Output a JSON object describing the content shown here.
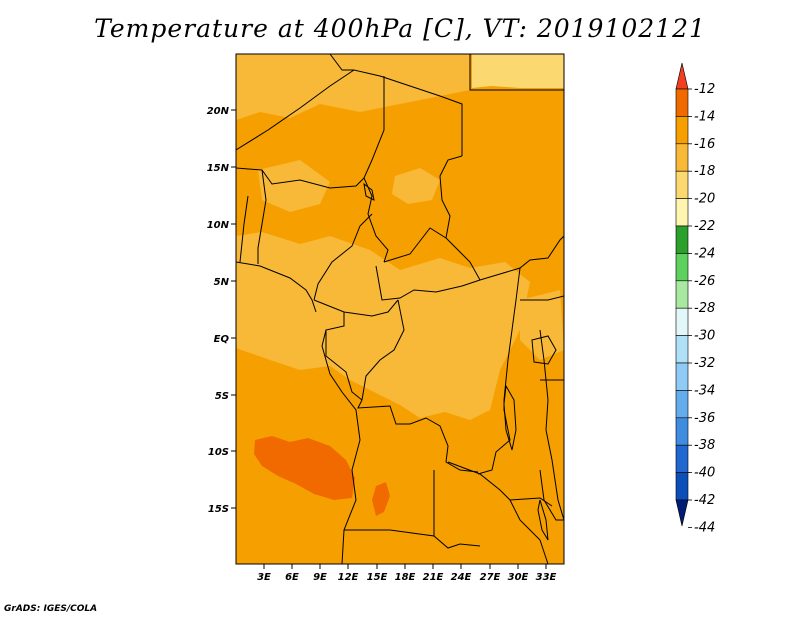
{
  "title": "Temperature at 400hPa [C], VT: 2019102121",
  "credit": "GrADS: IGES/COLA",
  "map": {
    "lat_labels": [
      "20N",
      "15N",
      "10N",
      "5N",
      "EQ",
      "5S",
      "10S",
      "15S"
    ],
    "lon_labels": [
      "3E",
      "6E",
      "9E",
      "12E",
      "15E",
      "18E",
      "21E",
      "24E",
      "27E",
      "30E",
      "33E"
    ]
  },
  "colorbar": {
    "labels": [
      "-12",
      "-14",
      "-16",
      "-18",
      "-20",
      "-22",
      "-24",
      "-26",
      "-28",
      "-30",
      "-32",
      "-34",
      "-36",
      "-38",
      "-40",
      "-42",
      "-44"
    ],
    "colors": [
      "#f04020",
      "#f06a00",
      "#f5a000",
      "#f8b838",
      "#fcd870",
      "#fff5b0",
      "#2ca02c",
      "#5dd05d",
      "#a8e8a0",
      "#e2f8f8",
      "#b0e0f8",
      "#90cbf5",
      "#65acec",
      "#3f8ce0",
      "#2068d0",
      "#0d4fb8",
      "#001d75"
    ]
  },
  "field_colors": {
    "main": "#f5a000",
    "warm": "#f06a00",
    "cool": "#f8b838",
    "coolest": "#fcd870",
    "borders": "#000000"
  }
}
